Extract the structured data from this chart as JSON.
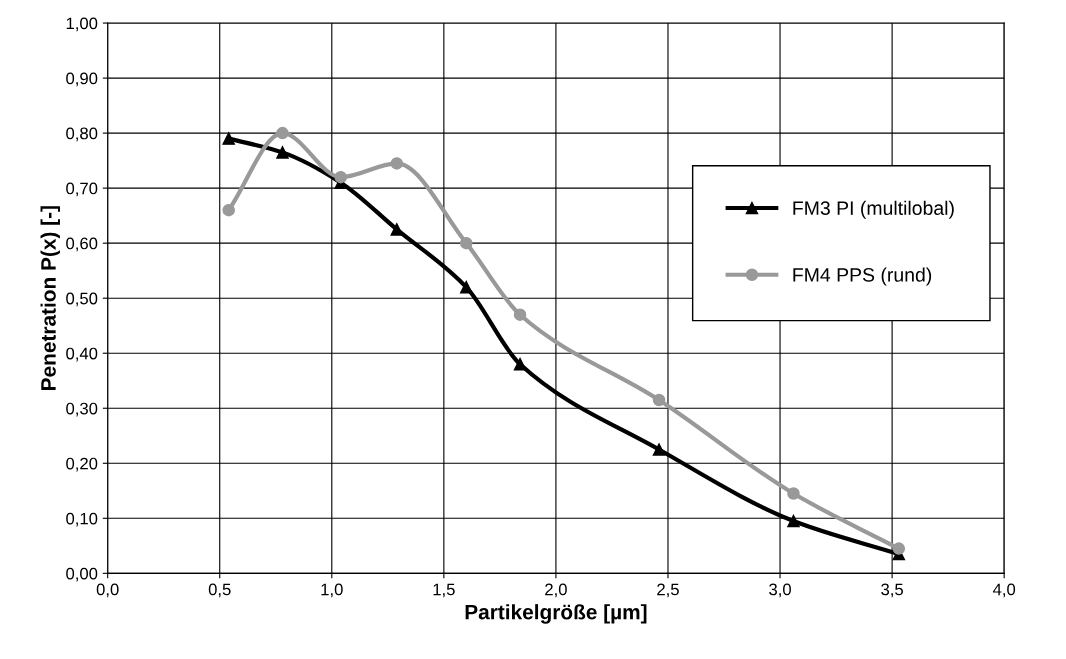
{
  "chart_data": {
    "type": "line",
    "xlabel": "Partikelgröße [µm]",
    "ylabel": "Penetration P(x) [-]",
    "xlim": [
      0,
      4
    ],
    "xticks": [
      {
        "value": 0,
        "label": "0,0"
      },
      {
        "value": 0.5,
        "label": "0,5"
      },
      {
        "value": 1,
        "label": "1,0"
      },
      {
        "value": 1.5,
        "label": "1,5"
      },
      {
        "value": 2,
        "label": "2,0"
      },
      {
        "value": 2.5,
        "label": "2,5"
      },
      {
        "value": 3,
        "label": "3,0"
      },
      {
        "value": 3.5,
        "label": "3,5"
      },
      {
        "value": 4,
        "label": "4,0"
      }
    ],
    "ylim": [
      0,
      1
    ],
    "yticks": [
      {
        "value": 0,
        "label": "0,00"
      },
      {
        "value": 0.1,
        "label": "0,10"
      },
      {
        "value": 0.2,
        "label": "0,20"
      },
      {
        "value": 0.3,
        "label": "0,30"
      },
      {
        "value": 0.4,
        "label": "0,40"
      },
      {
        "value": 0.5,
        "label": "0,50"
      },
      {
        "value": 0.6,
        "label": "0,60"
      },
      {
        "value": 0.7,
        "label": "0,70"
      },
      {
        "value": 0.8,
        "label": "0,80"
      },
      {
        "value": 0.9,
        "label": "0,90"
      },
      {
        "value": 1,
        "label": "1,00"
      }
    ],
    "x": [
      0.54,
      0.78,
      1.04,
      1.29,
      1.6,
      1.84,
      2.46,
      3.06,
      3.53
    ],
    "series": [
      {
        "name": "FM3 PI (multilobal)",
        "color": "#000000",
        "marker": "triangle",
        "values": [
          0.79,
          0.765,
          0.71,
          0.625,
          0.52,
          0.38,
          0.225,
          0.095,
          0.035
        ]
      },
      {
        "name": "FM4 PPS (rund)",
        "color": "#999999",
        "marker": "circle",
        "values": [
          0.66,
          0.8,
          0.72,
          0.745,
          0.6,
          0.47,
          0.315,
          0.145,
          0.045
        ]
      }
    ],
    "grid": true,
    "legend": "right",
    "line_style": "solid"
  }
}
